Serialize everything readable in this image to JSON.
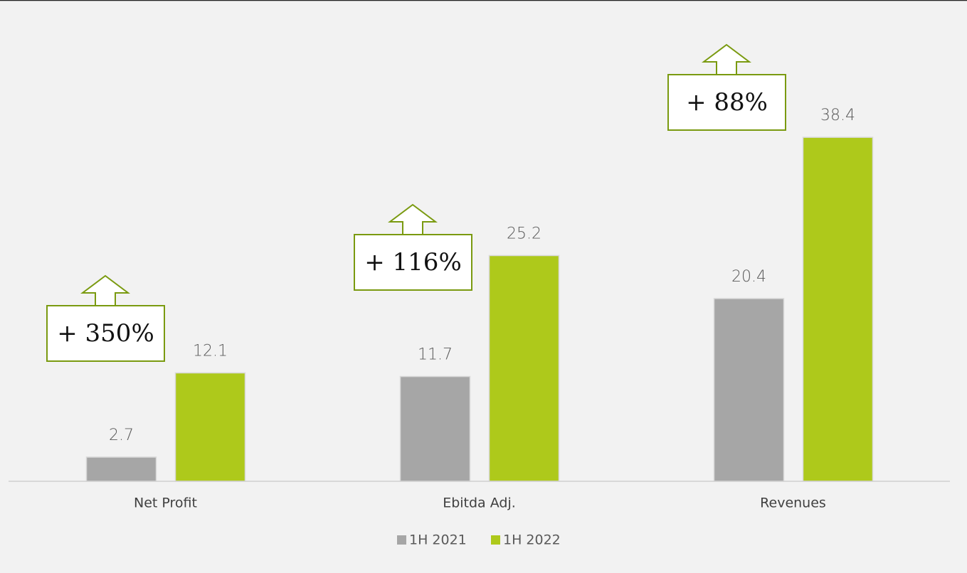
{
  "chart_data": {
    "type": "bar",
    "categories": [
      "Net Profit",
      "Ebitda Adj.",
      "Revenues"
    ],
    "series": [
      {
        "name": "1H 2021",
        "color": "#a6a6a6",
        "values": [
          2.7,
          11.7,
          20.4
        ]
      },
      {
        "name": "1H 2022",
        "color": "#aec91b",
        "values": [
          12.1,
          25.2,
          38.4
        ]
      }
    ],
    "annotations": [
      "+ 350%",
      "+ 116%",
      "+ 88%"
    ],
    "annotation_color": "#7a9a10",
    "ylim": [
      0,
      50
    ],
    "legend": "bottom"
  }
}
